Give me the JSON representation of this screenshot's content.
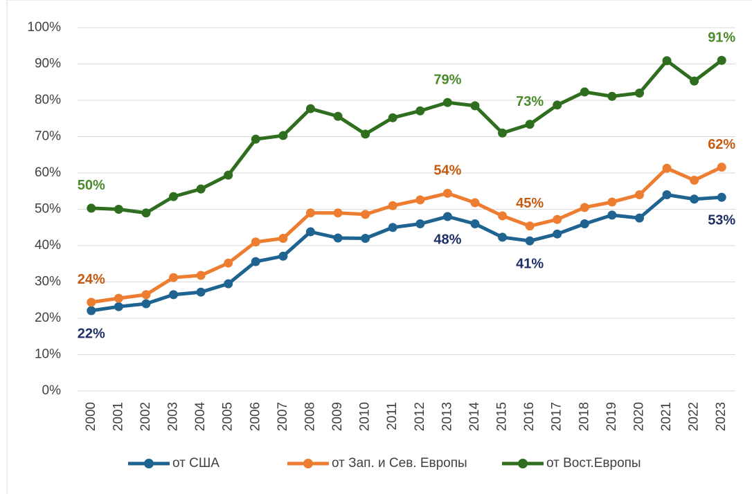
{
  "chart_data": {
    "type": "line",
    "categories": [
      "2000",
      "2001",
      "2002",
      "2003",
      "2004",
      "2005",
      "2006",
      "2007",
      "2008",
      "2009",
      "2010",
      "2011",
      "2012",
      "2013",
      "2014",
      "2015",
      "2016",
      "2017",
      "2018",
      "2019",
      "2020",
      "2021",
      "2022",
      "2023"
    ],
    "series": [
      {
        "name": "от США",
        "color": "#1f6391",
        "label_color": "#1f2f66",
        "label_side": "below",
        "values": [
          22.1,
          23.2,
          24,
          26.5,
          27.2,
          29.5,
          35.6,
          37.1,
          43.8,
          42.1,
          42,
          45,
          46,
          48,
          46,
          42.3,
          41.3,
          43.2,
          46,
          48.4,
          47.6,
          54,
          52.8,
          53.3
        ],
        "value_labels": [
          "22%",
          null,
          null,
          null,
          null,
          null,
          null,
          null,
          null,
          null,
          null,
          null,
          null,
          "48%",
          null,
          null,
          "41%",
          null,
          null,
          null,
          null,
          null,
          null,
          "53%"
        ]
      },
      {
        "name": "от Зап. и Сев. Европы",
        "color": "#ed7d31",
        "label_color": "#c55a11",
        "label_side": "above",
        "values": [
          24.4,
          25.5,
          26.5,
          31.2,
          31.8,
          35.2,
          41,
          42,
          49,
          49,
          48.6,
          51,
          52.6,
          54.4,
          51.8,
          48.2,
          45.4,
          47.2,
          50.5,
          52,
          54,
          61.3,
          58,
          61.6
        ],
        "value_labels": [
          "24%",
          null,
          null,
          null,
          null,
          null,
          null,
          null,
          null,
          null,
          null,
          null,
          null,
          "54%",
          null,
          null,
          "45%",
          null,
          null,
          null,
          null,
          null,
          null,
          "62%"
        ]
      },
      {
        "name": "от Вост.Европы",
        "color": "#2e6e1e",
        "label_color": "#4a8a2a",
        "label_side": "above",
        "values": [
          50.3,
          50,
          49,
          53.5,
          55.6,
          59.4,
          69.3,
          70.3,
          77.7,
          75.6,
          70.7,
          75.2,
          77.1,
          79.4,
          78.5,
          71,
          73.4,
          78.7,
          82.3,
          81.1,
          82,
          90.9,
          85.3,
          91
        ],
        "value_labels": [
          "50%",
          null,
          null,
          null,
          null,
          null,
          null,
          null,
          null,
          null,
          null,
          null,
          null,
          "79%",
          null,
          null,
          "73%",
          null,
          null,
          null,
          null,
          null,
          null,
          "91%"
        ]
      }
    ],
    "ylim": [
      0,
      100
    ],
    "yticks": [
      {
        "value": 0,
        "label": "0%"
      },
      {
        "value": 10,
        "label": "10%"
      },
      {
        "value": 20,
        "label": "20%"
      },
      {
        "value": 30,
        "label": "30%"
      },
      {
        "value": 40,
        "label": "40%"
      },
      {
        "value": 50,
        "label": "50%"
      },
      {
        "value": 60,
        "label": "60%"
      },
      {
        "value": 70,
        "label": "70%"
      },
      {
        "value": 80,
        "label": "80%"
      },
      {
        "value": 90,
        "label": "90%"
      },
      {
        "value": 100,
        "label": "100%"
      }
    ],
    "grid": true,
    "legend": "bottom"
  }
}
